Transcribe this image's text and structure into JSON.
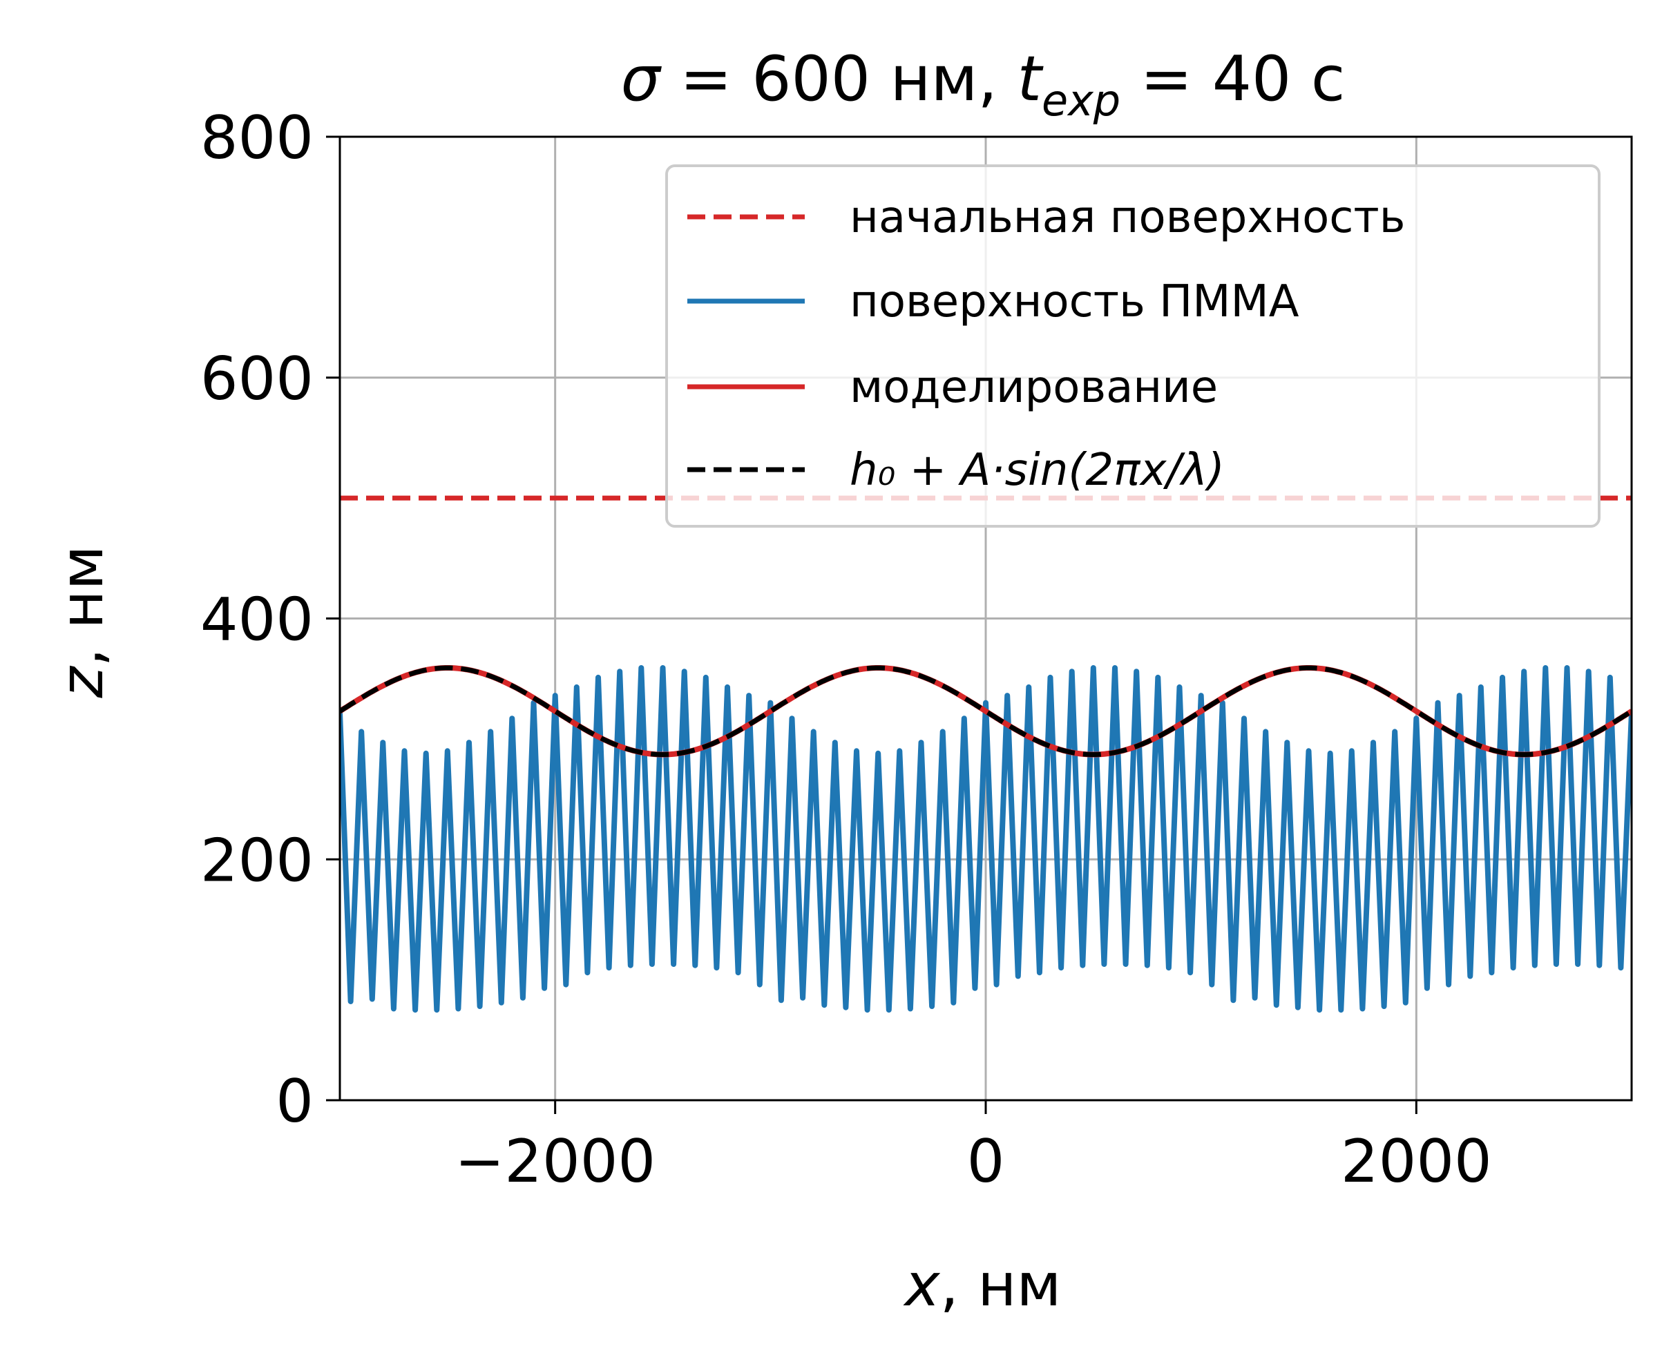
{
  "chart_data": {
    "type": "line",
    "title": {
      "sigma_symbol": "σ",
      "sigma_text": " = 600 нм, ",
      "t_symbol": "t",
      "t_sub": "exp",
      "t_text": " = 40 с"
    },
    "xlabel": {
      "symbol": "x",
      "text": ", нм"
    },
    "ylabel": {
      "symbol": "z",
      "text": ", нм"
    },
    "xlim": [
      -3000,
      3000
    ],
    "ylim": [
      0,
      800
    ],
    "xticks": [
      -2000,
      0,
      2000
    ],
    "xtick_labels": [
      "−2000",
      "0",
      "2000"
    ],
    "yticks": [
      0,
      200,
      400,
      600,
      800
    ],
    "ytick_labels": [
      "0",
      "200",
      "400",
      "600",
      "800"
    ],
    "grid": true,
    "legend_position": "top-right",
    "series": [
      {
        "name": "начальная поверхность",
        "color": "#d62728",
        "style": "dashed",
        "x": [
          -3000,
          3000
        ],
        "y": [
          500,
          500
        ]
      },
      {
        "name": "поверхность ПММА",
        "color": "#1f77b4",
        "style": "solid",
        "x": [
          -3000,
          -2950,
          -2900,
          -2850,
          -2800,
          -2750,
          -2700,
          -2650,
          -2600,
          -2550,
          -2500,
          -2450,
          -2400,
          -2350,
          -2300,
          -2250,
          -2200,
          -2150,
          -2100,
          -2050,
          -2000,
          -1950,
          -1900,
          -1850,
          -1800,
          -1750,
          -1700,
          -1650,
          -1600,
          -1550,
          -1500,
          -1450,
          -1400,
          -1350,
          -1300,
          -1250,
          -1200,
          -1150,
          -1100,
          -1050,
          -1000,
          -950,
          -900,
          -850,
          -800,
          -750,
          -700,
          -650,
          -600,
          -550,
          -500,
          -450,
          -400,
          -350,
          -300,
          -250,
          -200,
          -150,
          -100,
          -50,
          0,
          50,
          100,
          150,
          200,
          250,
          300,
          350,
          400,
          450,
          500,
          550,
          600,
          650,
          700,
          750,
          800,
          850,
          900,
          950,
          1000,
          1050,
          1100,
          1150,
          1200,
          1250,
          1300,
          1350,
          1400,
          1450,
          1500,
          1550,
          1600,
          1650,
          1700,
          1750,
          1800,
          1850,
          1900,
          1950,
          2000,
          2050,
          2100,
          2150,
          2200,
          2250,
          2300,
          2350,
          2400,
          2450,
          2500,
          2550,
          2600,
          2650,
          2700,
          2750,
          2800,
          2850,
          2900,
          2950,
          3000
        ],
        "y": [
          322,
          82,
          306,
          84,
          297,
          76,
          290,
          75,
          288,
          75,
          290,
          76,
          297,
          78,
          306,
          81,
          317,
          85,
          330,
          93,
          336,
          96,
          343,
          106,
          351,
          110,
          356,
          112,
          359,
          113,
          359,
          113,
          356,
          112,
          351,
          110,
          343,
          106,
          336,
          96,
          330,
          83,
          317,
          85,
          306,
          79,
          297,
          77,
          290,
          75,
          288,
          75,
          290,
          76,
          297,
          78,
          306,
          81,
          317,
          93,
          330,
          96,
          336,
          103,
          343,
          106,
          351,
          110,
          356,
          112,
          359,
          113,
          359,
          113,
          356,
          112,
          351,
          110,
          343,
          106,
          336,
          96,
          330,
          83,
          317,
          85,
          306,
          79,
          297,
          77,
          290,
          75,
          288,
          75,
          290,
          76,
          297,
          78,
          306,
          81,
          317,
          93,
          330,
          96,
          336,
          103,
          343,
          106,
          351,
          110,
          356,
          112,
          359,
          113,
          359,
          113,
          356,
          112,
          351,
          110,
          322
        ]
      },
      {
        "name": "моделирование",
        "color": "#d62728",
        "style": "solid",
        "h0": 323,
        "A": 36,
        "lambda": 2000
      },
      {
        "name": "h₀ + A·sin(2πx/λ)",
        "color": "#000000",
        "style": "dashed",
        "h0": 323,
        "A": 36,
        "lambda": 2000
      }
    ]
  }
}
